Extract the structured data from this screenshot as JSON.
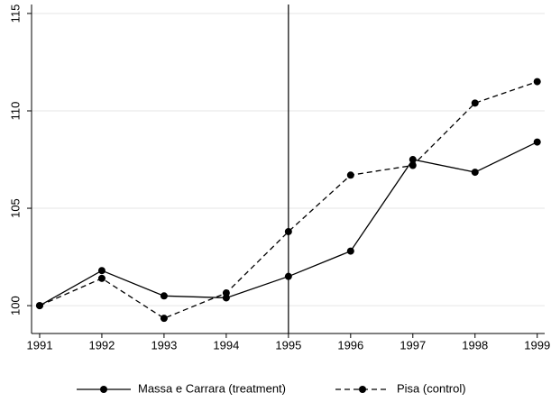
{
  "chart_data": {
    "type": "line",
    "x": [
      1991,
      1992,
      1993,
      1994,
      1995,
      1996,
      1997,
      1998,
      1999
    ],
    "series": [
      {
        "name": "Massa e Carrara (treatment)",
        "color": "#000000",
        "dash": false,
        "values": [
          100,
          101.8,
          100.5,
          100.4,
          101.5,
          102.8,
          107.5,
          106.85,
          108.4
        ]
      },
      {
        "name": "Pisa (control)",
        "color": "#000000",
        "dash": true,
        "values": [
          100,
          101.4,
          99.35,
          100.65,
          103.8,
          106.7,
          107.2,
          110.4,
          111.5
        ]
      }
    ],
    "reference_line_x": 1995,
    "xlim": [
      1990.87,
      1999.12
    ],
    "xticks": [
      1991,
      1992,
      1993,
      1994,
      1995,
      1996,
      1997,
      1998,
      1999
    ],
    "ylim": [
      98.57,
      115.46
    ],
    "yticks": [
      100,
      105,
      110,
      115
    ],
    "grid": true,
    "legend": "bottom"
  }
}
